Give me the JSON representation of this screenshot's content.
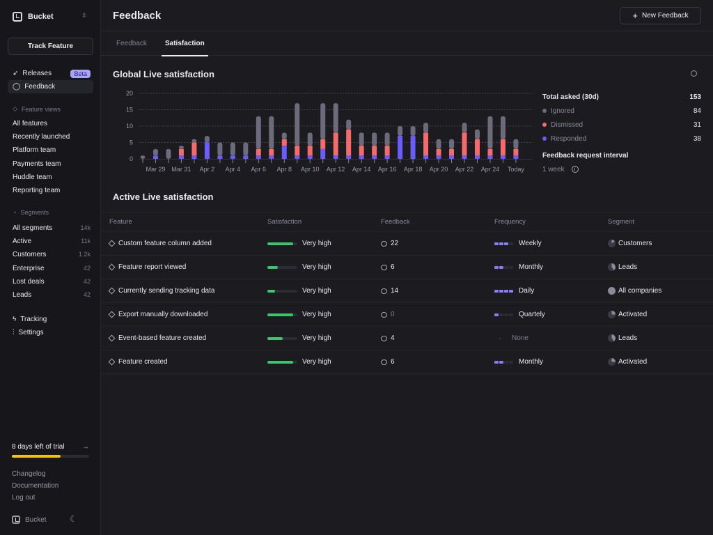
{
  "sidebar": {
    "brand": "Bucket",
    "track_button": "Track Feature",
    "nav": [
      {
        "label": "Releases",
        "badge": "Beta"
      },
      {
        "label": "Feedback"
      }
    ],
    "feature_views_label": "Feature views",
    "feature_views": [
      "All features",
      "Recently launched",
      "Platform team",
      "Payments team",
      "Huddle team",
      "Reporting team"
    ],
    "segments_label": "Segments",
    "segments": [
      {
        "label": "All segments",
        "count": "14k"
      },
      {
        "label": "Active",
        "count": "11k"
      },
      {
        "label": "Customers",
        "count": "1.2k"
      },
      {
        "label": "Enterprise",
        "count": "42"
      },
      {
        "label": "Lost deals",
        "count": "42"
      },
      {
        "label": "Leads",
        "count": "42"
      }
    ],
    "bottom_nav": [
      "Tracking",
      "Settings"
    ],
    "trial": {
      "label": "8 days left of trial",
      "progress_percent": 63
    },
    "links": [
      "Changelog",
      "Documentation",
      "Log out"
    ],
    "footer_brand": "Bucket"
  },
  "header": {
    "title": "Feedback",
    "new_button": "New Feedback"
  },
  "tabs": [
    {
      "label": "Feedback",
      "active": false
    },
    {
      "label": "Satisfaction",
      "active": true
    }
  ],
  "global": {
    "title": "Global Live satisfaction",
    "total_label": "Total asked (30d)",
    "total": "153",
    "legend": [
      {
        "label": "Ignored",
        "value": "84",
        "color": "#6b6b7b"
      },
      {
        "label": "Dismissed",
        "value": "31",
        "color": "#f56a6a"
      },
      {
        "label": "Responded",
        "value": "38",
        "color": "#6a5cff"
      }
    ],
    "interval_label": "Feedback request interval",
    "interval": "1 week"
  },
  "chart_data": {
    "type": "bar",
    "stacked": true,
    "ylim": [
      0,
      20
    ],
    "yticks": [
      0,
      5,
      10,
      15,
      20
    ],
    "grid": true,
    "categories": [
      "Mar 28",
      "Mar 29",
      "Mar 30",
      "Mar 31",
      "Apr 1",
      "Apr 2",
      "Apr 3",
      "Apr 4",
      "Apr 5",
      "Apr 6",
      "Apr 7",
      "Apr 8",
      "Apr 9",
      "Apr 10",
      "Apr 11",
      "Apr 12",
      "Apr 13",
      "Apr 14",
      "Apr 15",
      "Apr 16",
      "Apr 17",
      "Apr 18",
      "Apr 19",
      "Apr 20",
      "Apr 21",
      "Apr 22",
      "Apr 23",
      "Apr 24",
      "Apr 25",
      "Today"
    ],
    "tick_labels": [
      "Mar 29",
      "Mar 31",
      "Apr 2",
      "Apr 4",
      "Apr 6",
      "Apr 8",
      "Apr 10",
      "Apr 12",
      "Apr 14",
      "Apr 16",
      "Apr 18",
      "Apr 20",
      "Apr 22",
      "Apr 24",
      "Today"
    ],
    "series": [
      {
        "name": "Responded",
        "color": "#6a5cff",
        "values": [
          0,
          1,
          0,
          1,
          1,
          5,
          1,
          1,
          1,
          1,
          1,
          4,
          1,
          1,
          3,
          1,
          1,
          1,
          1,
          1,
          7,
          7,
          1,
          1,
          1,
          1,
          1,
          1,
          1,
          1
        ]
      },
      {
        "name": "Dismissed",
        "color": "#f56a6a",
        "values": [
          0,
          0,
          0,
          2,
          4,
          0,
          0,
          0,
          0,
          2,
          2,
          2,
          3,
          3,
          3,
          7,
          8,
          3,
          3,
          3,
          0,
          0,
          7,
          2,
          2,
          7,
          5,
          2,
          5,
          2
        ]
      },
      {
        "name": "Ignored",
        "color": "#6b6b7b",
        "values": [
          1,
          2,
          3,
          1,
          1,
          2,
          4,
          4,
          4,
          10,
          10,
          2,
          13,
          4,
          11,
          9,
          3,
          4,
          4,
          4,
          3,
          3,
          3,
          3,
          3,
          3,
          3,
          10,
          7,
          3
        ]
      }
    ]
  },
  "active": {
    "title": "Active Live satisfaction",
    "columns": [
      "Feature",
      "Satisfaction",
      "Feedback",
      "Frequency",
      "Segment"
    ],
    "rows": [
      {
        "feature": "Custom feature column added",
        "satisfaction": "Very high",
        "satisfaction_level": 0.85,
        "feedback": "22",
        "frequency": "Weekly",
        "freq_level": 3,
        "segment": "Customers",
        "segment_share": 0.15
      },
      {
        "feature": "Feature report viewed",
        "satisfaction": "Very high",
        "satisfaction_level": 0.35,
        "feedback": "6",
        "frequency": "Monthly",
        "freq_level": 2,
        "segment": "Leads",
        "segment_share": 0.4
      },
      {
        "feature": "Currently sending tracking data",
        "satisfaction": "Very high",
        "satisfaction_level": 0.25,
        "feedback": "14",
        "frequency": "Daily",
        "freq_level": 4,
        "segment": "All companies",
        "segment_share": 1
      },
      {
        "feature": "Export manually downloaded",
        "satisfaction": "Very high",
        "satisfaction_level": 0.85,
        "feedback": "0",
        "frequency": "Quartely",
        "freq_level": 1,
        "segment": "Activated",
        "segment_share": 0.25
      },
      {
        "feature": "Event-based feature created",
        "satisfaction": "Very high",
        "satisfaction_level": 0.5,
        "feedback": "4",
        "frequency": "None",
        "freq_level": 0,
        "segment": "Leads",
        "segment_share": 0.4
      },
      {
        "feature": "Feature created",
        "satisfaction": "Very high",
        "satisfaction_level": 0.85,
        "feedback": "6",
        "frequency": "Monthly",
        "freq_level": 2,
        "segment": "Activated",
        "segment_share": 0.25
      }
    ]
  }
}
